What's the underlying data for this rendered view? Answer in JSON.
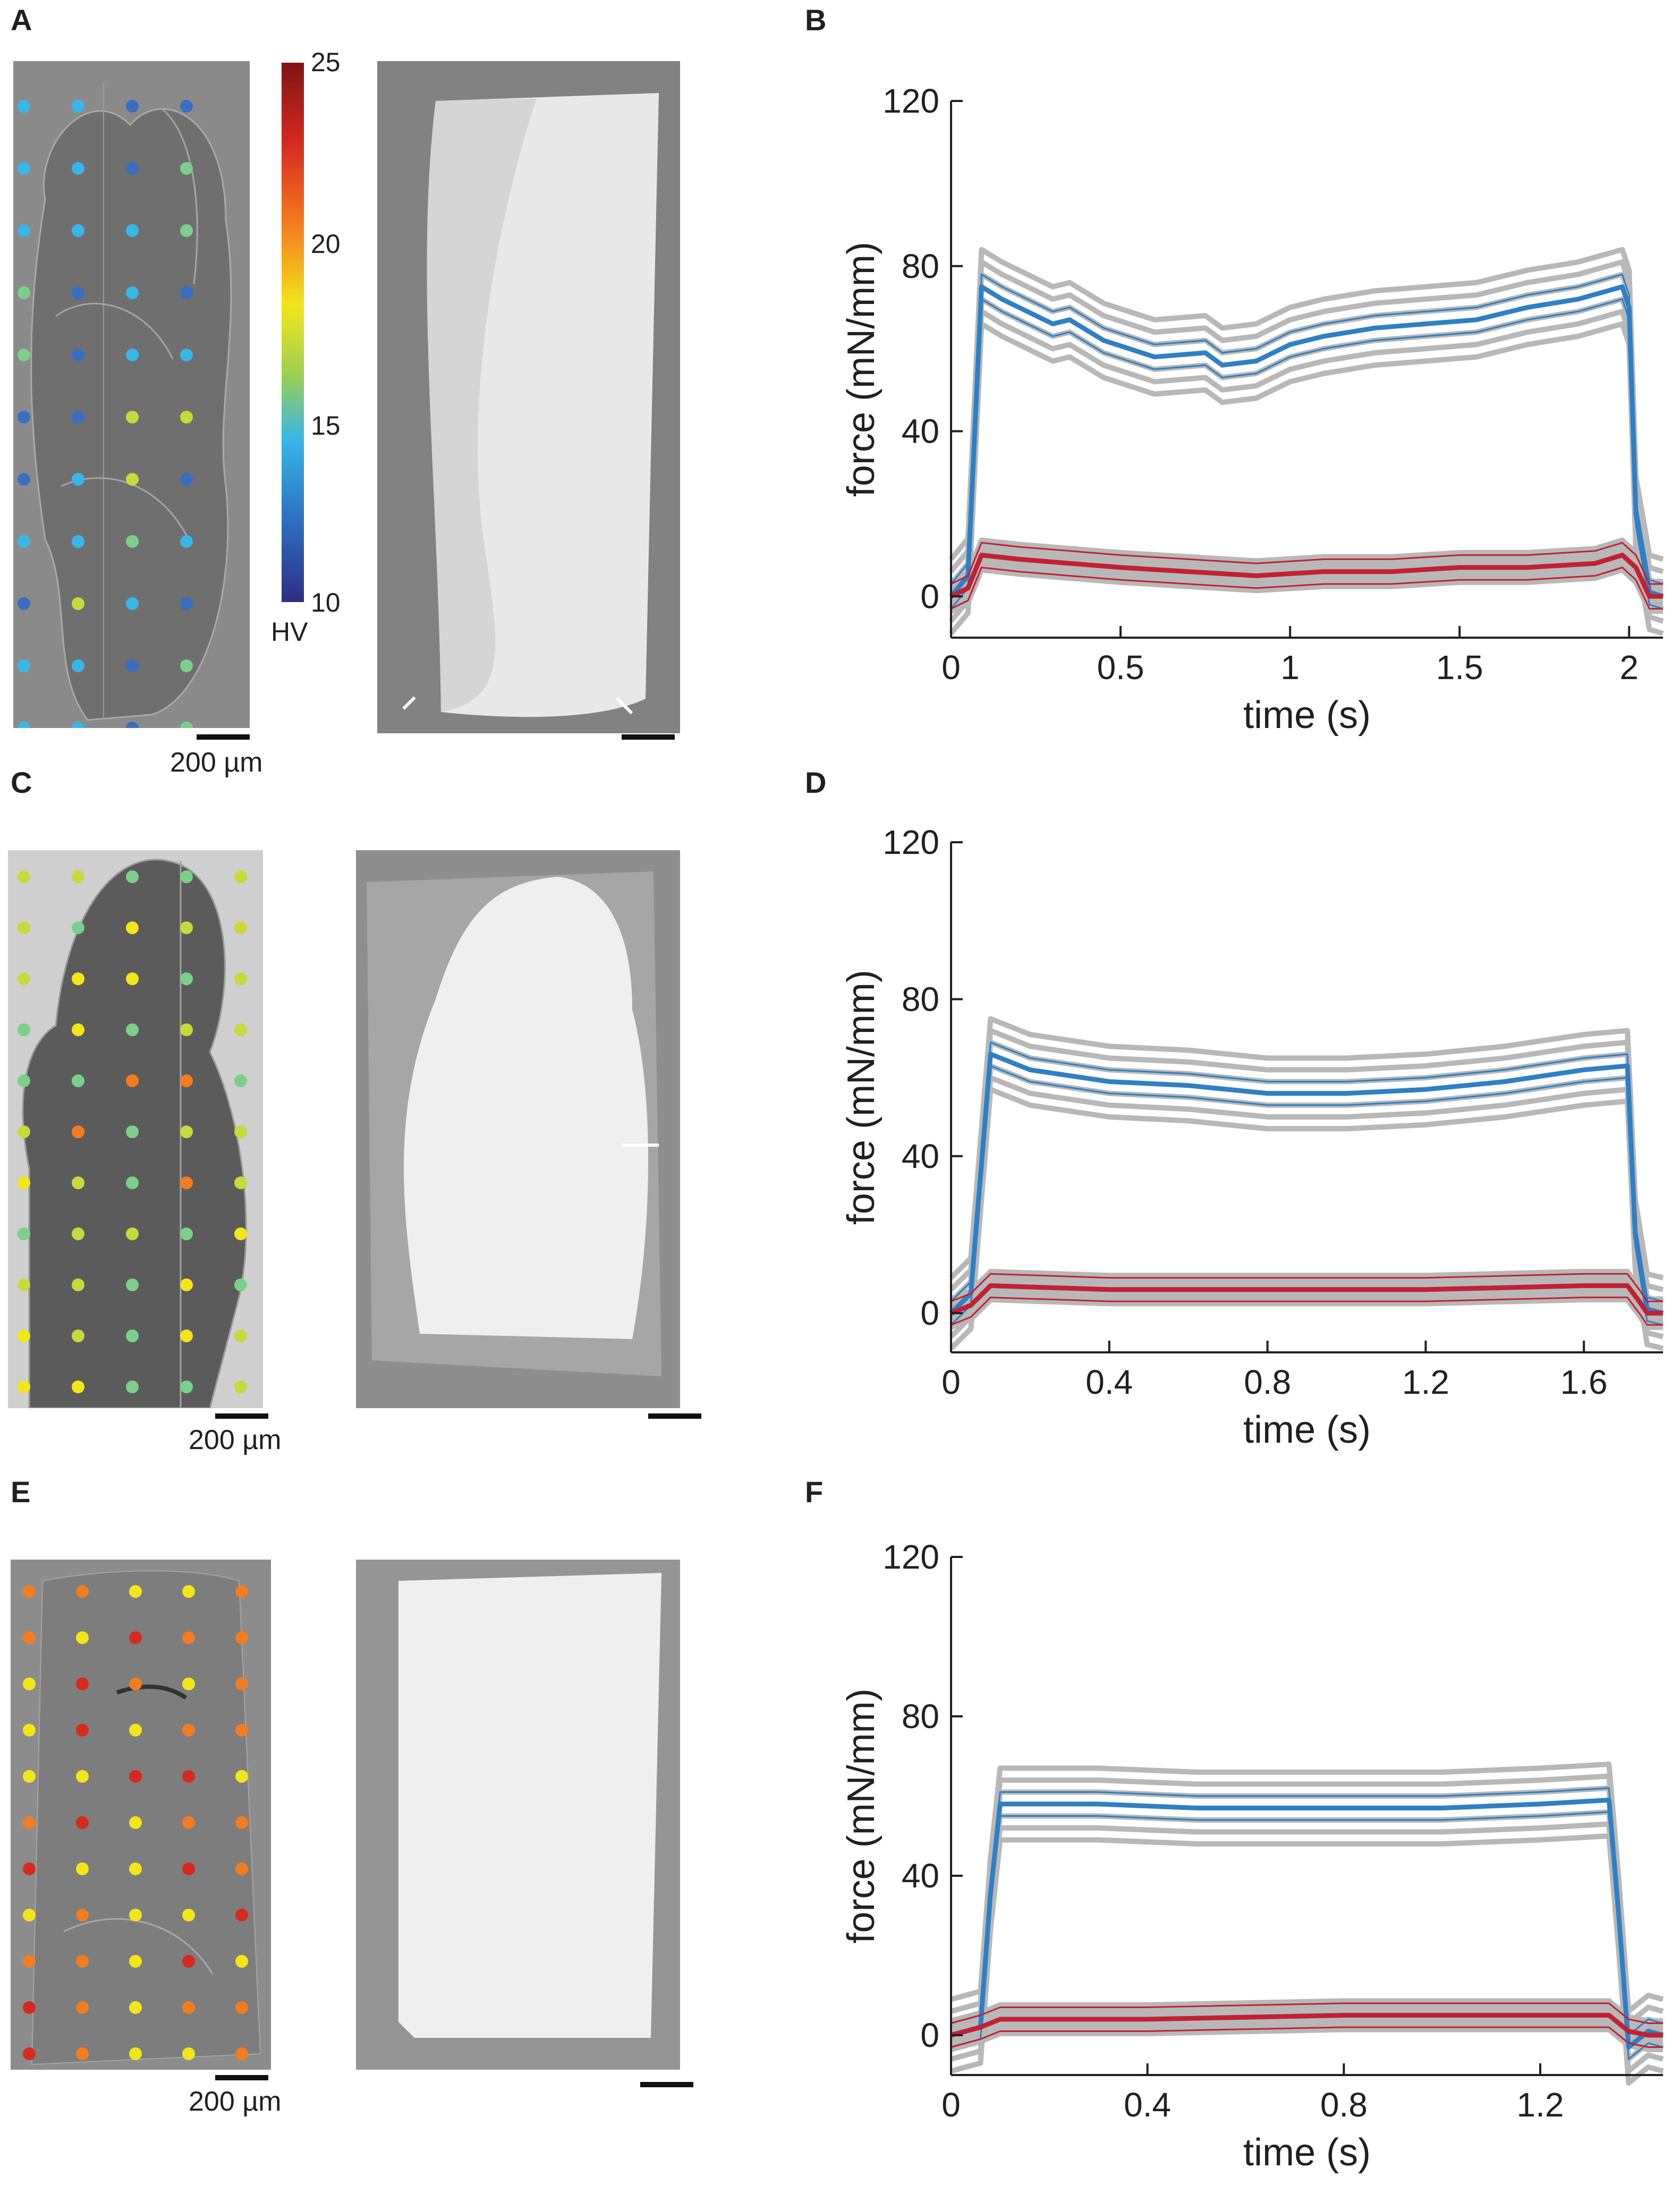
{
  "figure": {
    "panel_labels": {
      "A": "A",
      "B": "B",
      "C": "C",
      "D": "D",
      "E": "E",
      "F": "F"
    },
    "scale_text": "200 µm",
    "colorbar": {
      "ticks": [
        "25",
        "20",
        "15",
        "10"
      ],
      "unit": "HV",
      "min": 10,
      "max": 25
    }
  },
  "colors": {
    "blue": "#2f7fc4",
    "red": "#c22033",
    "gray": "#b8b8b8",
    "axis": "#231f20"
  },
  "chart_data": [
    {
      "type": "line",
      "panel": "B",
      "xlabel": "time (s)",
      "ylabel": "force (mN/mm)",
      "xlim": [
        0,
        2.1
      ],
      "ylim": [
        -10,
        120
      ],
      "xticks": [
        0,
        0.5,
        1,
        1.5,
        2
      ],
      "xtick_labels": [
        "0",
        "0.5",
        "1",
        "1.5",
        "2"
      ],
      "yticks": [
        0,
        40,
        80,
        120
      ],
      "ytick_labels": [
        "0",
        "40",
        "80",
        "120"
      ],
      "series": [
        {
          "color": "blue",
          "x": [
            0,
            0.05,
            0.09,
            0.15,
            0.3,
            0.35,
            0.45,
            0.6,
            0.75,
            0.8,
            0.9,
            1.0,
            1.1,
            1.25,
            1.4,
            1.55,
            1.7,
            1.85,
            1.98,
            2.0,
            2.02,
            2.06,
            2.1
          ],
          "y": [
            0,
            5,
            75,
            72,
            66,
            67,
            62,
            58,
            59,
            56,
            57,
            61,
            63,
            65,
            66,
            67,
            70,
            72,
            75,
            70,
            20,
            1,
            0
          ]
        },
        {
          "color": "red",
          "x": [
            0,
            0.05,
            0.09,
            0.2,
            0.35,
            0.5,
            0.7,
            0.9,
            1.1,
            1.3,
            1.5,
            1.7,
            1.9,
            1.98,
            2.02,
            2.06,
            2.1
          ],
          "y": [
            0,
            2,
            10,
            9,
            8,
            7,
            6,
            5,
            6,
            6,
            7,
            7,
            8,
            10,
            7,
            0,
            0
          ]
        }
      ]
    },
    {
      "type": "line",
      "panel": "D",
      "xlabel": "time (s)",
      "ylabel": "force (mN/mm)",
      "xlim": [
        0,
        1.8
      ],
      "ylim": [
        -10,
        120
      ],
      "xticks": [
        0,
        0.4,
        0.8,
        1.2,
        1.6
      ],
      "xtick_labels": [
        "0",
        "0.4",
        "0.8",
        "1.2",
        "1.6"
      ],
      "yticks": [
        0,
        40,
        80,
        120
      ],
      "ytick_labels": [
        "0",
        "40",
        "80",
        "120"
      ],
      "series": [
        {
          "color": "blue",
          "x": [
            0,
            0.05,
            0.1,
            0.2,
            0.4,
            0.6,
            0.8,
            1.0,
            1.2,
            1.4,
            1.6,
            1.71,
            1.73,
            1.76,
            1.8
          ],
          "y": [
            0,
            5,
            66,
            62,
            59,
            58,
            56,
            56,
            57,
            59,
            62,
            63,
            20,
            1,
            0
          ]
        },
        {
          "color": "red",
          "x": [
            0,
            0.05,
            0.1,
            0.4,
            0.8,
            1.2,
            1.6,
            1.71,
            1.74,
            1.76,
            1.8
          ],
          "y": [
            0,
            2,
            7,
            6,
            6,
            6,
            7,
            7,
            3,
            0,
            0
          ]
        }
      ]
    },
    {
      "type": "line",
      "panel": "F",
      "xlabel": "time (s)",
      "ylabel": "force (mN/mm)",
      "xlim": [
        0,
        1.45
      ],
      "ylim": [
        -10,
        120
      ],
      "xticks": [
        0,
        0.4,
        0.8,
        1.2
      ],
      "xtick_labels": [
        "0",
        "0.4",
        "0.8",
        "1.2"
      ],
      "yticks": [
        0,
        40,
        80,
        120
      ],
      "ytick_labels": [
        "0",
        "40",
        "80",
        "120"
      ],
      "series": [
        {
          "color": "blue",
          "x": [
            0,
            0.06,
            0.08,
            0.1,
            0.3,
            0.5,
            0.8,
            1.0,
            1.2,
            1.34,
            1.36,
            1.38,
            1.42,
            1.45
          ],
          "y": [
            0,
            2,
            35,
            58,
            58,
            57,
            57,
            57,
            58,
            59,
            30,
            -3,
            1,
            0
          ]
        },
        {
          "color": "red",
          "x": [
            0,
            0.06,
            0.1,
            0.4,
            0.8,
            1.2,
            1.34,
            1.38,
            1.42,
            1.45
          ],
          "y": [
            0,
            2,
            4,
            4,
            5,
            5,
            5,
            1,
            0,
            0
          ]
        }
      ]
    }
  ]
}
